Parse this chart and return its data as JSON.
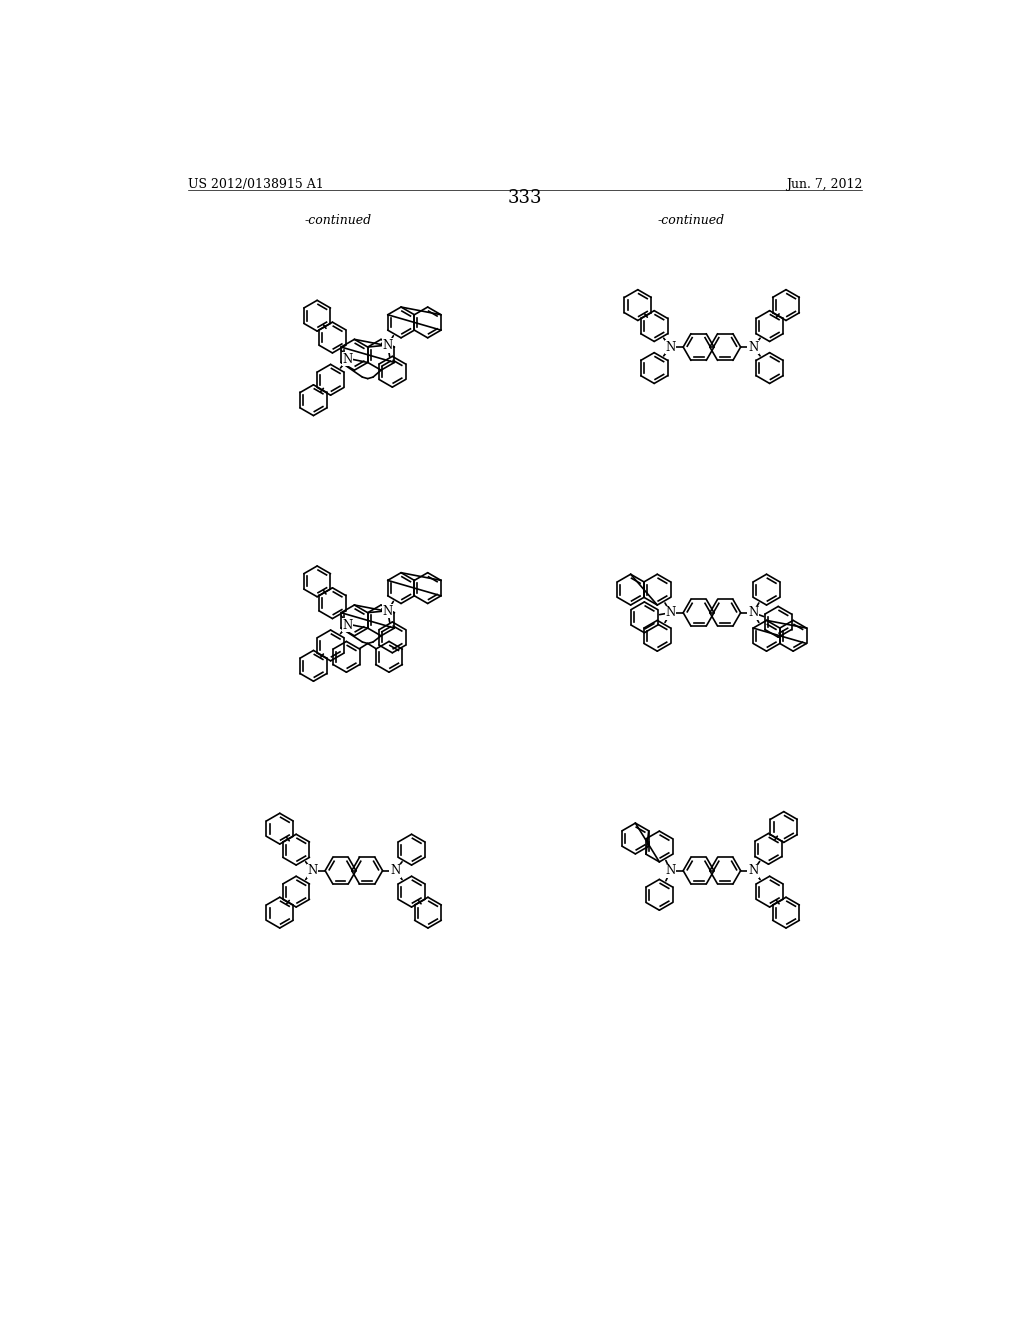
{
  "page_number": "333",
  "patent_number": "US 2012/0138915 A1",
  "date": "Jun. 7, 2012",
  "continued_label": "-continued",
  "background_color": "#ffffff"
}
